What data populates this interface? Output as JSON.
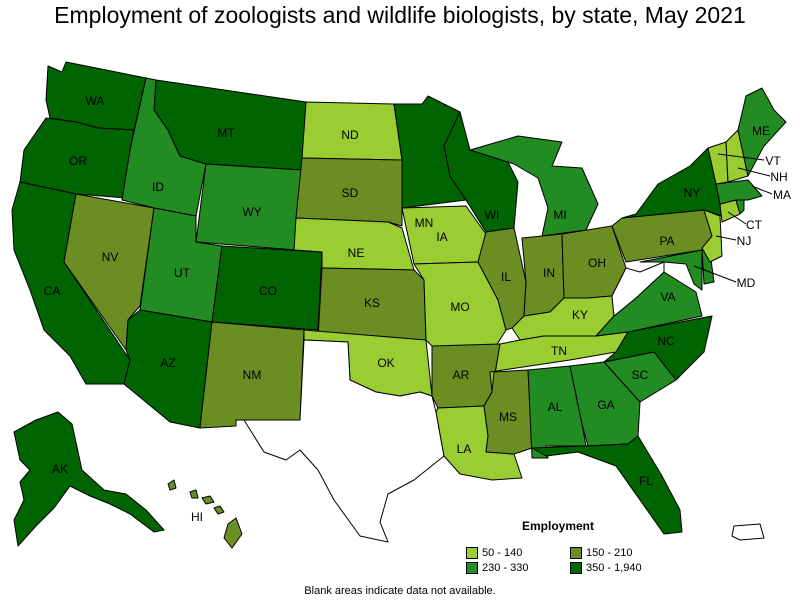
{
  "title": "Employment of zoologists and wildlife biologists, by state, May 2021",
  "legend": {
    "title": "Employment",
    "bins": [
      {
        "label": "50 - 140",
        "color": "#9acd32"
      },
      {
        "label": "150 - 210",
        "color": "#6b8e23"
      },
      {
        "label": "230 - 330",
        "color": "#228b22"
      },
      {
        "label": "350 - 1,940",
        "color": "#006400"
      }
    ]
  },
  "footnote": "Blank areas indicate data not available.",
  "colors": {
    "no_data": "#ffffff",
    "border": "#000000"
  },
  "states": {
    "WA": {
      "label": "WA",
      "bin": "350 - 1,940"
    },
    "OR": {
      "label": "OR",
      "bin": "350 - 1,940"
    },
    "CA": {
      "label": "CA",
      "bin": "350 - 1,940"
    },
    "ID": {
      "label": "ID",
      "bin": "230 - 330"
    },
    "NV": {
      "label": "NV",
      "bin": "150 - 210"
    },
    "MT": {
      "label": "MT",
      "bin": "350 - 1,940"
    },
    "WY": {
      "label": "WY",
      "bin": "230 - 330"
    },
    "UT": {
      "label": "UT",
      "bin": "230 - 330"
    },
    "AZ": {
      "label": "AZ",
      "bin": "350 - 1,940"
    },
    "CO": {
      "label": "CO",
      "bin": "350 - 1,940"
    },
    "NM": {
      "label": "NM",
      "bin": "150 - 210"
    },
    "ND": {
      "label": "ND",
      "bin": "50 - 140"
    },
    "SD": {
      "label": "SD",
      "bin": "150 - 210"
    },
    "NE": {
      "label": "NE",
      "bin": "50 - 140"
    },
    "KS": {
      "label": "KS",
      "bin": "150 - 210"
    },
    "OK": {
      "label": "OK",
      "bin": "50 - 140"
    },
    "TX": {
      "label": "",
      "bin": null
    },
    "MN": {
      "label": "MN",
      "bin": "350 - 1,940"
    },
    "IA": {
      "label": "IA",
      "bin": "50 - 140"
    },
    "MO": {
      "label": "MO",
      "bin": "50 - 140"
    },
    "AR": {
      "label": "AR",
      "bin": "150 - 210"
    },
    "LA": {
      "label": "LA",
      "bin": "50 - 140"
    },
    "WI": {
      "label": "WI",
      "bin": "350 - 1,940"
    },
    "IL": {
      "label": "IL",
      "bin": "150 - 210"
    },
    "MI": {
      "label": "MI",
      "bin": "230 - 330"
    },
    "IN": {
      "label": "IN",
      "bin": "150 - 210"
    },
    "OH": {
      "label": "OH",
      "bin": "150 - 210"
    },
    "KY": {
      "label": "KY",
      "bin": "50 - 140"
    },
    "TN": {
      "label": "TN",
      "bin": "50 - 140"
    },
    "MS": {
      "label": "MS",
      "bin": "150 - 210"
    },
    "AL": {
      "label": "AL",
      "bin": "230 - 330"
    },
    "GA": {
      "label": "GA",
      "bin": "230 - 330"
    },
    "FL": {
      "label": "FL",
      "bin": "350 - 1,940"
    },
    "SC": {
      "label": "SC",
      "bin": "230 - 330"
    },
    "NC": {
      "label": "NC",
      "bin": "350 - 1,940"
    },
    "VA": {
      "label": "VA",
      "bin": "230 - 330"
    },
    "WV": {
      "label": "",
      "bin": null
    },
    "PA": {
      "label": "PA",
      "bin": "150 - 210"
    },
    "NY": {
      "label": "NY",
      "bin": "350 - 1,940"
    },
    "VT": {
      "label": "VT",
      "bin": "50 - 140"
    },
    "NH": {
      "label": "NH",
      "bin": "50 - 140"
    },
    "ME": {
      "label": "ME",
      "bin": "230 - 330"
    },
    "MA": {
      "label": "MA",
      "bin": "230 - 330"
    },
    "CT": {
      "label": "CT",
      "bin": "50 - 140"
    },
    "RI": {
      "label": "",
      "bin": "230 - 330"
    },
    "NJ": {
      "label": "NJ",
      "bin": "50 - 140"
    },
    "DE": {
      "label": "",
      "bin": "230 - 330"
    },
    "MD": {
      "label": "MD",
      "bin": "230 - 330"
    },
    "AK": {
      "label": "AK",
      "bin": "350 - 1,940"
    },
    "HI": {
      "label": "HI",
      "bin": "150 - 210"
    },
    "PR": {
      "label": "",
      "bin": null
    }
  }
}
